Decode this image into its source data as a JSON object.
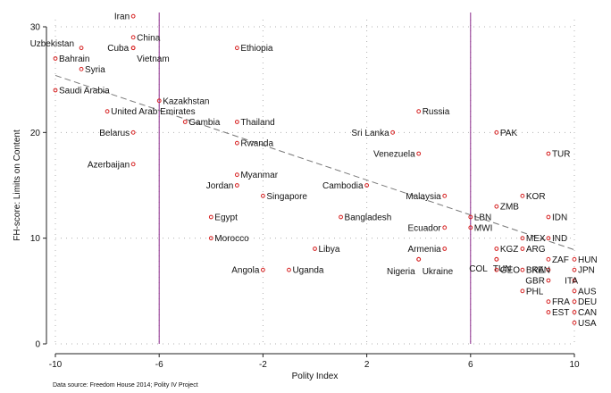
{
  "chart_data": {
    "type": "scatter",
    "title": "",
    "xlabel": "Polity Index",
    "ylabel": "FH-score: Limits on Content",
    "xlim": [
      -10,
      10
    ],
    "ylim": [
      0,
      30
    ],
    "xticks": [
      "-10",
      "-6",
      "-2",
      "2",
      "6",
      "10"
    ],
    "yticks": [
      "0",
      "10",
      "20",
      "30"
    ],
    "source": "Data source:  Freedom House 2014; Polity IV Project",
    "reference_lines_x": [
      -6,
      6
    ],
    "fit_line": {
      "x": [
        -10,
        10
      ],
      "y": [
        25.4,
        8.9
      ]
    },
    "colors": {
      "point": "#d62020",
      "reference": "#8b2a8b",
      "fit": "#777777",
      "grid": "#b0b0b0"
    },
    "points": [
      {
        "label": "Iran",
        "x": -7,
        "y": 31
      },
      {
        "label": "China",
        "x": -7,
        "y": 29
      },
      {
        "label": "Uzbekistan",
        "x": -9,
        "y": 28
      },
      {
        "label": "Cuba",
        "x": -7,
        "y": 28
      },
      {
        "label": "Vietnam",
        "x": -7,
        "y": 28
      },
      {
        "label": "Ethiopia",
        "x": -3,
        "y": 28
      },
      {
        "label": "Bahrain",
        "x": -10,
        "y": 27
      },
      {
        "label": "Syria",
        "x": -9,
        "y": 26
      },
      {
        "label": "Saudi Arabia",
        "x": -10,
        "y": 24
      },
      {
        "label": "Kazakhstan",
        "x": -6,
        "y": 23
      },
      {
        "label": "United Arab Emirates",
        "x": -8,
        "y": 22
      },
      {
        "label": "Russia",
        "x": 4,
        "y": 22
      },
      {
        "label": "Gambia",
        "x": -5,
        "y": 21
      },
      {
        "label": "Thailand",
        "x": -3,
        "y": 21
      },
      {
        "label": "Belarus",
        "x": -7,
        "y": 20
      },
      {
        "label": "Sri Lanka",
        "x": 3,
        "y": 20
      },
      {
        "label": "PAK",
        "x": 7,
        "y": 20
      },
      {
        "label": "Rwanda",
        "x": -3,
        "y": 19
      },
      {
        "label": "Venezuela",
        "x": 4,
        "y": 18
      },
      {
        "label": "TUR",
        "x": 9,
        "y": 18
      },
      {
        "label": "Azerbaijan",
        "x": -7,
        "y": 17
      },
      {
        "label": "Myanmar",
        "x": -3,
        "y": 16
      },
      {
        "label": "Jordan",
        "x": -3,
        "y": 15
      },
      {
        "label": "Cambodia",
        "x": 2,
        "y": 15
      },
      {
        "label": "Singapore",
        "x": -2,
        "y": 14
      },
      {
        "label": "Malaysia",
        "x": 5,
        "y": 14
      },
      {
        "label": "KOR",
        "x": 8,
        "y": 14
      },
      {
        "label": "ZMB",
        "x": 7,
        "y": 13
      },
      {
        "label": "Egypt",
        "x": -4,
        "y": 12
      },
      {
        "label": "Bangladesh",
        "x": 1,
        "y": 12
      },
      {
        "label": "LBN",
        "x": 6,
        "y": 12
      },
      {
        "label": "IDN",
        "x": 9,
        "y": 12
      },
      {
        "label": "Ecuador",
        "x": 5,
        "y": 11
      },
      {
        "label": "MWI",
        "x": 6,
        "y": 11
      },
      {
        "label": "Morocco",
        "x": -4,
        "y": 10
      },
      {
        "label": "MEX",
        "x": 8,
        "y": 10
      },
      {
        "label": "IND",
        "x": 9,
        "y": 10
      },
      {
        "label": "Libya",
        "x": 0,
        "y": 9
      },
      {
        "label": "Armenia",
        "x": 5,
        "y": 9
      },
      {
        "label": "KGZ",
        "x": 7,
        "y": 9
      },
      {
        "label": "ARG",
        "x": 8,
        "y": 9
      },
      {
        "label": "COL",
        "x": 7,
        "y": 8
      },
      {
        "label": "TUN",
        "x": 7,
        "y": 8
      },
      {
        "label": "ZAF",
        "x": 9,
        "y": 8
      },
      {
        "label": "HUN",
        "x": 10,
        "y": 8
      },
      {
        "label": "Nigeria",
        "x": 4,
        "y": 8
      },
      {
        "label": "Ukraine",
        "x": 4,
        "y": 8
      },
      {
        "label": "Angola",
        "x": -2,
        "y": 7
      },
      {
        "label": "Uganda",
        "x": -1,
        "y": 7
      },
      {
        "label": "GEO",
        "x": 7,
        "y": 7
      },
      {
        "label": "BRA",
        "x": 8,
        "y": 7
      },
      {
        "label": "KEN",
        "x": 9,
        "y": 7
      },
      {
        "label": "JPN",
        "x": 10,
        "y": 7
      },
      {
        "label": "GBR",
        "x": 9,
        "y": 6
      },
      {
        "label": "ITA",
        "x": 10,
        "y": 6
      },
      {
        "label": "PHL",
        "x": 8,
        "y": 5
      },
      {
        "label": "AUS",
        "x": 10,
        "y": 5
      },
      {
        "label": "FRA",
        "x": 9,
        "y": 4
      },
      {
        "label": "DEU",
        "x": 10,
        "y": 4
      },
      {
        "label": "EST",
        "x": 9,
        "y": 3
      },
      {
        "label": "CAN",
        "x": 10,
        "y": 3
      },
      {
        "label": "USA",
        "x": 10,
        "y": 2
      }
    ]
  }
}
